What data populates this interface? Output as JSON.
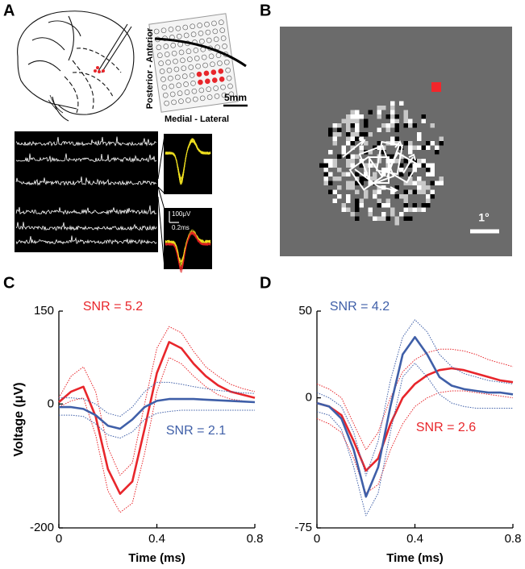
{
  "panel_labels": [
    "A",
    "B",
    "C",
    "D"
  ],
  "panel_a": {
    "axis_vertical": "Posterior - Anterior",
    "axis_horizontal": "Medial - Lateral",
    "scale_bar": "5mm",
    "amplitude_scale": "100μV",
    "time_scale": "0.2ms"
  },
  "panel_b": {
    "scale_bar": "1°"
  },
  "chart_data": [
    {
      "type": "line",
      "xlabel": "Time (ms)",
      "ylabel": "Voltage (μV)",
      "x": [
        0,
        0.05,
        0.1,
        0.15,
        0.2,
        0.25,
        0.3,
        0.35,
        0.4,
        0.45,
        0.5,
        0.55,
        0.6,
        0.65,
        0.7,
        0.75,
        0.8
      ],
      "xlim": [
        0,
        0.8
      ],
      "xticks": [
        0,
        0.4,
        0.8
      ],
      "ylim": [
        -200,
        150
      ],
      "yticks": [
        -200,
        0,
        150
      ],
      "annotations": [
        {
          "text": "SNR = 5.2",
          "color": "#e8262b"
        },
        {
          "text": "SNR = 2.1",
          "color": "#3f5fa8"
        }
      ],
      "series": [
        {
          "color": "#e8262b",
          "style": "solid",
          "values": [
            3,
            20,
            28,
            -20,
            -105,
            -145,
            -125,
            -40,
            50,
            100,
            90,
            65,
            45,
            30,
            20,
            15,
            10
          ]
        },
        {
          "color": "#e8262b",
          "style": "dotted",
          "values": [
            10,
            45,
            60,
            20,
            -70,
            -115,
            -95,
            0,
            90,
            125,
            115,
            85,
            60,
            45,
            32,
            25,
            20
          ]
        },
        {
          "color": "#e8262b",
          "style": "dotted",
          "values": [
            -5,
            5,
            10,
            -50,
            -140,
            -175,
            -160,
            -80,
            20,
            75,
            65,
            45,
            28,
            15,
            8,
            5,
            2
          ]
        },
        {
          "color": "#3f5fa8",
          "style": "solid",
          "values": [
            -5,
            -5,
            -8,
            -18,
            -35,
            -40,
            -25,
            -5,
            5,
            8,
            8,
            8,
            7,
            6,
            5,
            4,
            3
          ]
        },
        {
          "color": "#3f5fa8",
          "style": "dotted",
          "values": [
            10,
            10,
            8,
            0,
            -15,
            -20,
            -5,
            20,
            35,
            35,
            32,
            28,
            25,
            22,
            20,
            18,
            17
          ]
        },
        {
          "color": "#3f5fa8",
          "style": "dotted",
          "values": [
            -18,
            -18,
            -20,
            -32,
            -50,
            -55,
            -45,
            -25,
            -15,
            -12,
            -10,
            -10,
            -10,
            -10,
            -10,
            -10,
            -10
          ]
        }
      ]
    },
    {
      "type": "line",
      "xlabel": "Time (ms)",
      "x": [
        0,
        0.05,
        0.1,
        0.15,
        0.2,
        0.25,
        0.3,
        0.35,
        0.4,
        0.45,
        0.5,
        0.55,
        0.6,
        0.65,
        0.7,
        0.75,
        0.8
      ],
      "xlim": [
        0,
        0.8
      ],
      "xticks": [
        0,
        0.4,
        0.8
      ],
      "ylim": [
        -75,
        50
      ],
      "yticks": [
        -75,
        0,
        50
      ],
      "annotations": [
        {
          "text": "SNR = 4.2",
          "color": "#3f5fa8"
        },
        {
          "text": "SNR = 2.6",
          "color": "#e8262b"
        }
      ],
      "series": [
        {
          "color": "#e8262b",
          "style": "solid",
          "values": [
            -3,
            -5,
            -10,
            -25,
            -42,
            -35,
            -15,
            0,
            8,
            13,
            16,
            17,
            16,
            14,
            12,
            10,
            9
          ]
        },
        {
          "color": "#e8262b",
          "style": "dotted",
          "values": [
            8,
            5,
            0,
            -15,
            -30,
            -20,
            0,
            15,
            22,
            26,
            28,
            28,
            27,
            25,
            22,
            20,
            18
          ]
        },
        {
          "color": "#e8262b",
          "style": "dotted",
          "values": [
            -12,
            -15,
            -20,
            -35,
            -55,
            -50,
            -30,
            -15,
            -5,
            0,
            3,
            4,
            4,
            3,
            2,
            1,
            0
          ]
        },
        {
          "color": "#3f5fa8",
          "style": "solid",
          "values": [
            -3,
            -5,
            -12,
            -30,
            -57,
            -40,
            -5,
            25,
            35,
            25,
            12,
            7,
            5,
            4,
            3,
            3,
            2
          ]
        },
        {
          "color": "#3f5fa8",
          "style": "dotted",
          "values": [
            3,
            0,
            -5,
            -20,
            -45,
            -25,
            10,
            35,
            45,
            38,
            25,
            18,
            14,
            12,
            10,
            9,
            8
          ]
        },
        {
          "color": "#3f5fa8",
          "style": "dotted",
          "values": [
            -8,
            -10,
            -18,
            -40,
            -68,
            -55,
            -20,
            12,
            20,
            12,
            2,
            -3,
            -5,
            -6,
            -6,
            -6,
            -6
          ]
        }
      ]
    }
  ]
}
